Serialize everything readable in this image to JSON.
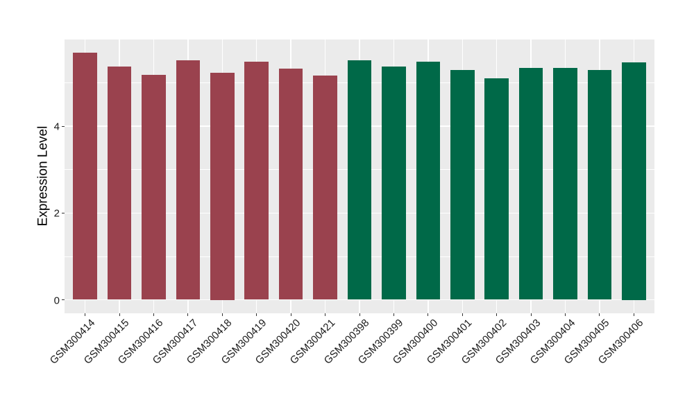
{
  "chart_data": {
    "type": "bar",
    "title": "",
    "xlabel": "",
    "ylabel": "Expression Level",
    "ylim": [
      0,
      6
    ],
    "yticks": [
      0,
      2,
      4
    ],
    "yticks_minor": [
      1,
      3,
      5
    ],
    "grid": true,
    "legend": "none",
    "panel_background": "#EBEBEB",
    "grid_color": "#FFFFFF",
    "tick_color": "#333333",
    "group_colors": {
      "left_group_maroon": "#9A424E",
      "right_group_green": "#006948"
    },
    "bars": [
      {
        "label": "GSM300414",
        "value": 5.7,
        "color": "#9A424E",
        "group": "left_group_maroon"
      },
      {
        "label": "GSM300415",
        "value": 5.37,
        "color": "#9A424E",
        "group": "left_group_maroon"
      },
      {
        "label": "GSM300416",
        "value": 5.18,
        "color": "#9A424E",
        "group": "left_group_maroon"
      },
      {
        "label": "GSM300417",
        "value": 5.52,
        "color": "#9A424E",
        "group": "left_group_maroon"
      },
      {
        "label": "GSM300418",
        "value": 5.24,
        "color": "#9A424E",
        "group": "left_group_maroon"
      },
      {
        "label": "GSM300419",
        "value": 5.49,
        "color": "#9A424E",
        "group": "left_group_maroon"
      },
      {
        "label": "GSM300420",
        "value": 5.33,
        "color": "#9A424E",
        "group": "left_group_maroon"
      },
      {
        "label": "GSM300421",
        "value": 5.17,
        "color": "#9A424E",
        "group": "left_group_maroon"
      },
      {
        "label": "GSM300398",
        "value": 5.52,
        "color": "#006948",
        "group": "right_group_green"
      },
      {
        "label": "GSM300399",
        "value": 5.37,
        "color": "#006948",
        "group": "right_group_green"
      },
      {
        "label": "GSM300400",
        "value": 5.49,
        "color": "#006948",
        "group": "right_group_green"
      },
      {
        "label": "GSM300401",
        "value": 5.3,
        "color": "#006948",
        "group": "right_group_green"
      },
      {
        "label": "GSM300402",
        "value": 5.1,
        "color": "#006948",
        "group": "right_group_green"
      },
      {
        "label": "GSM300403",
        "value": 5.35,
        "color": "#006948",
        "group": "right_group_green"
      },
      {
        "label": "GSM300404",
        "value": 5.35,
        "color": "#006948",
        "group": "right_group_green"
      },
      {
        "label": "GSM300405",
        "value": 5.29,
        "color": "#006948",
        "group": "right_group_green"
      },
      {
        "label": "GSM300406",
        "value": 5.48,
        "color": "#006948",
        "group": "right_group_green"
      }
    ]
  }
}
